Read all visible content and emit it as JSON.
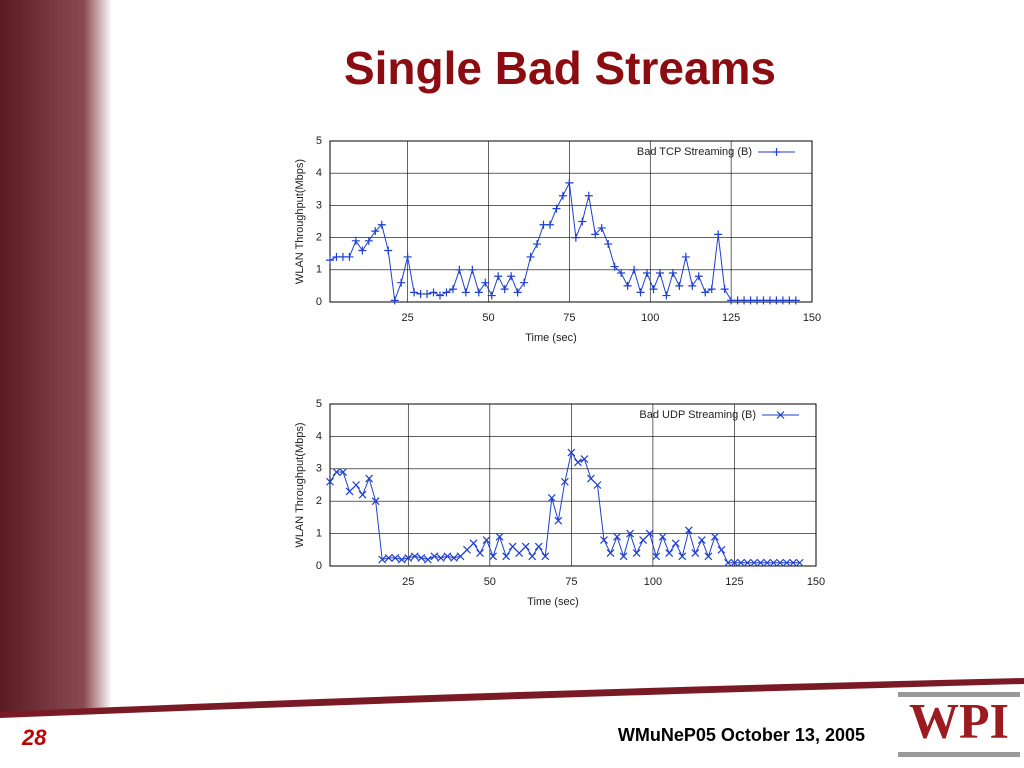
{
  "slide": {
    "title": "Single Bad Streams",
    "page_number": "28",
    "footer": "WMuNeP05 October 13, 2005",
    "logo": "WPI"
  },
  "chart_data": [
    {
      "type": "line",
      "xlabel": "Time (sec)",
      "ylabel": "WLAN Throughput(Mbps)",
      "xlim": [
        1,
        150
      ],
      "xticks": [
        25,
        50,
        75,
        100,
        125,
        150
      ],
      "ylim": [
        0,
        5
      ],
      "yticks": [
        0,
        1,
        2,
        3,
        4,
        5
      ],
      "grid": true,
      "legend": "upper right",
      "x": [
        1,
        3,
        5,
        7,
        9,
        11,
        13,
        15,
        17,
        19,
        21,
        23,
        25,
        27,
        29,
        31,
        33,
        35,
        37,
        39,
        41,
        43,
        45,
        47,
        49,
        51,
        53,
        55,
        57,
        59,
        61,
        63,
        65,
        67,
        69,
        71,
        73,
        75,
        77,
        79,
        81,
        83,
        85,
        87,
        89,
        91,
        93,
        95,
        97,
        99,
        101,
        103,
        105,
        107,
        109,
        111,
        113,
        115,
        117,
        119,
        121,
        123,
        125,
        127,
        129,
        131,
        133,
        135,
        137,
        139,
        141,
        143,
        145
      ],
      "series": [
        {
          "name": "Bad TCP Streaming (B)",
          "color": "#1f3fd0",
          "marker": "plus",
          "values": [
            1.3,
            1.4,
            1.4,
            1.4,
            1.9,
            1.6,
            1.9,
            2.2,
            2.4,
            1.6,
            0.05,
            0.6,
            1.4,
            0.3,
            0.25,
            0.25,
            0.3,
            0.2,
            0.3,
            0.4,
            1.0,
            0.3,
            1.0,
            0.3,
            0.6,
            0.2,
            0.8,
            0.4,
            0.8,
            0.3,
            0.6,
            1.4,
            1.8,
            2.4,
            2.4,
            2.9,
            3.3,
            3.7,
            2.0,
            2.5,
            3.3,
            2.1,
            2.3,
            1.8,
            1.1,
            0.9,
            0.5,
            1.0,
            0.3,
            0.9,
            0.4,
            0.9,
            0.2,
            0.9,
            0.5,
            1.4,
            0.5,
            0.8,
            0.3,
            0.4,
            2.1,
            0.4,
            0.05,
            0.05,
            0.05,
            0.05,
            0.05,
            0.05,
            0.05,
            0.05,
            0.05,
            0.05,
            0.05
          ]
        }
      ]
    },
    {
      "type": "line",
      "xlabel": "Time (sec)",
      "ylabel": "WLAN Throughput(Mbps)",
      "xlim": [
        1,
        150
      ],
      "xticks": [
        25,
        50,
        75,
        100,
        125,
        150
      ],
      "ylim": [
        0,
        5
      ],
      "yticks": [
        0,
        1,
        2,
        3,
        4,
        5
      ],
      "grid": true,
      "legend": "upper right",
      "x": [
        1,
        3,
        5,
        7,
        9,
        11,
        13,
        15,
        17,
        19,
        21,
        23,
        25,
        27,
        29,
        31,
        33,
        35,
        37,
        39,
        41,
        43,
        45,
        47,
        49,
        51,
        53,
        55,
        57,
        59,
        61,
        63,
        65,
        67,
        69,
        71,
        73,
        75,
        77,
        79,
        81,
        83,
        85,
        87,
        89,
        91,
        93,
        95,
        97,
        99,
        101,
        103,
        105,
        107,
        109,
        111,
        113,
        115,
        117,
        119,
        121,
        123,
        125,
        127,
        129,
        131,
        133,
        135,
        137,
        139,
        141,
        143,
        145
      ],
      "series": [
        {
          "name": "Bad UDP Streaming (B)",
          "color": "#1f3fd0",
          "marker": "cross",
          "values": [
            2.6,
            2.9,
            2.9,
            2.3,
            2.5,
            2.2,
            2.7,
            2.0,
            0.2,
            0.25,
            0.25,
            0.2,
            0.25,
            0.3,
            0.25,
            0.2,
            0.3,
            0.25,
            0.3,
            0.25,
            0.3,
            0.5,
            0.7,
            0.4,
            0.8,
            0.3,
            0.9,
            0.3,
            0.6,
            0.4,
            0.6,
            0.3,
            0.6,
            0.3,
            2.1,
            1.4,
            2.6,
            3.5,
            3.2,
            3.3,
            2.7,
            2.5,
            0.8,
            0.4,
            0.9,
            0.3,
            1.0,
            0.4,
            0.8,
            1.0,
            0.3,
            0.9,
            0.4,
            0.7,
            0.3,
            1.1,
            0.4,
            0.8,
            0.3,
            0.9,
            0.5,
            0.1,
            0.1,
            0.1,
            0.1,
            0.1,
            0.1,
            0.1,
            0.1,
            0.1,
            0.1,
            0.1,
            0.1
          ]
        }
      ]
    }
  ]
}
